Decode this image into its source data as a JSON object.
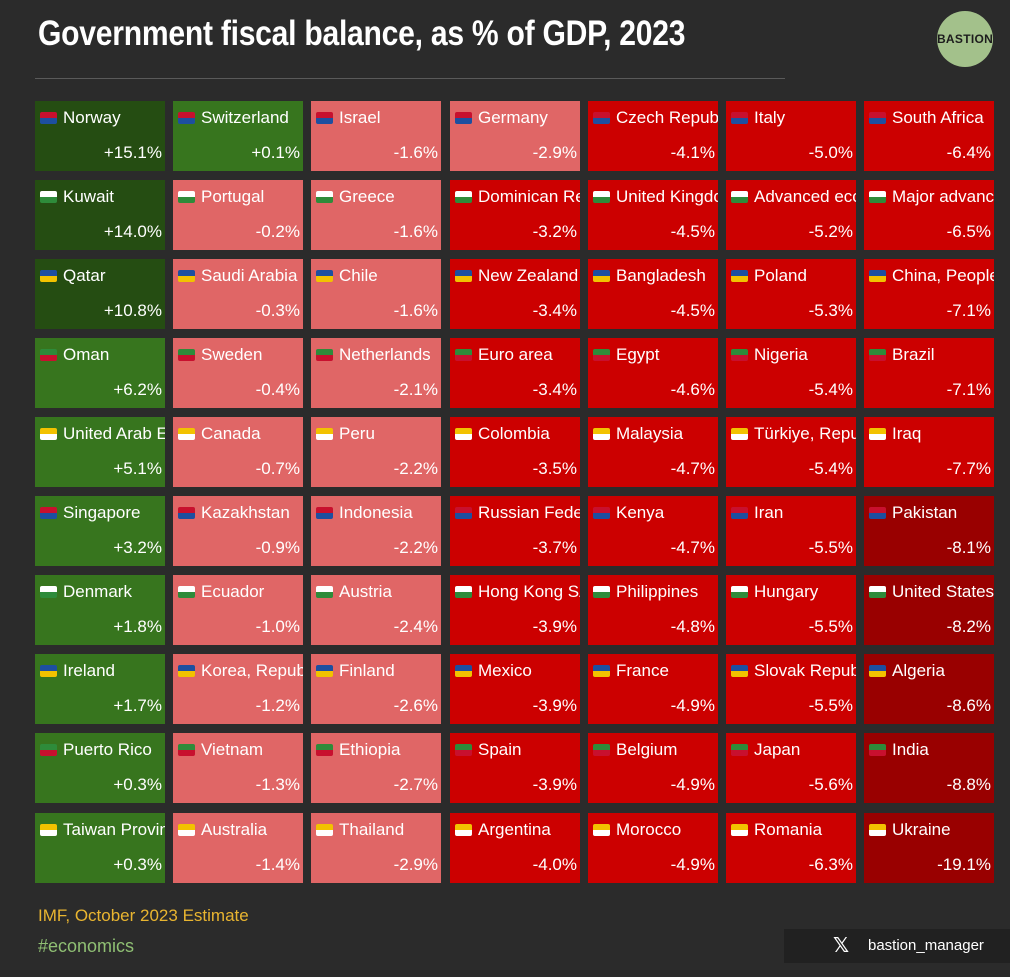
{
  "header": {
    "title": "Government fiscal balance, as % of GDP, 2023",
    "logo_text": "BASTION"
  },
  "footer": {
    "source": "IMF, October 2023 Estimate",
    "hashtag": "#economics",
    "x_icon": "x-logo-icon",
    "handle": "bastion_manager"
  },
  "colors": {
    "background": "#2b2b2b",
    "very_positive": "#254d12",
    "positive": "#37751e",
    "slightly_negative": "#e06666",
    "negative": "#cc0000",
    "very_negative": "#990000"
  },
  "chart_data": {
    "type": "heatmap",
    "title": "Government fiscal balance, as % of GDP, 2023",
    "unit": "% of GDP",
    "layout": "ranked grid, 10 rows per column, sorted descending",
    "columns": [
      [
        {
          "name": "Norway",
          "label": "+15.1%",
          "value": 15.1
        },
        {
          "name": "Kuwait",
          "label": "+14.0%",
          "value": 14.0
        },
        {
          "name": "Qatar",
          "label": "+10.8%",
          "value": 10.8
        },
        {
          "name": "Oman",
          "label": "+6.2%",
          "value": 6.2
        },
        {
          "name": "United Arab Emirates",
          "label": "+5.1%",
          "value": 5.1
        },
        {
          "name": "Singapore",
          "label": "+3.2%",
          "value": 3.2
        },
        {
          "name": "Denmark",
          "label": "+1.8%",
          "value": 1.8
        },
        {
          "name": "Ireland",
          "label": "+1.7%",
          "value": 1.7
        },
        {
          "name": "Puerto Rico",
          "label": "+0.3%",
          "value": 0.3
        },
        {
          "name": "Taiwan Province of China",
          "label": "+0.3%",
          "value": 0.3
        }
      ],
      [
        {
          "name": "Switzerland",
          "label": "+0.1%",
          "value": 0.1
        },
        {
          "name": "Portugal",
          "label": "-0.2%",
          "value": -0.2
        },
        {
          "name": "Saudi Arabia",
          "label": "-0.3%",
          "value": -0.3
        },
        {
          "name": "Sweden",
          "label": "-0.4%",
          "value": -0.4
        },
        {
          "name": "Canada",
          "label": "-0.7%",
          "value": -0.7
        },
        {
          "name": "Kazakhstan",
          "label": "-0.9%",
          "value": -0.9
        },
        {
          "name": "Ecuador",
          "label": "-1.0%",
          "value": -1.0
        },
        {
          "name": "Korea, Republic of",
          "label": "-1.2%",
          "value": -1.2
        },
        {
          "name": "Vietnam",
          "label": "-1.3%",
          "value": -1.3
        },
        {
          "name": "Australia",
          "label": "-1.4%",
          "value": -1.4
        }
      ],
      [
        {
          "name": "Israel",
          "label": "-1.6%",
          "value": -1.6
        },
        {
          "name": "Greece",
          "label": "-1.6%",
          "value": -1.6
        },
        {
          "name": "Chile",
          "label": "-1.6%",
          "value": -1.6
        },
        {
          "name": "Netherlands",
          "label": "-2.1%",
          "value": -2.1
        },
        {
          "name": "Peru",
          "label": "-2.2%",
          "value": -2.2
        },
        {
          "name": "Indonesia",
          "label": "-2.2%",
          "value": -2.2
        },
        {
          "name": "Austria",
          "label": "-2.4%",
          "value": -2.4
        },
        {
          "name": "Finland",
          "label": "-2.6%",
          "value": -2.6
        },
        {
          "name": "Ethiopia",
          "label": "-2.7%",
          "value": -2.7
        },
        {
          "name": "Thailand",
          "label": "-2.9%",
          "value": -2.9
        }
      ],
      [
        {
          "name": "Germany",
          "label": "-2.9%",
          "value": -2.9
        },
        {
          "name": "Dominican Republic",
          "label": "-3.2%",
          "value": -3.2
        },
        {
          "name": "New Zealand",
          "label": "-3.4%",
          "value": -3.4
        },
        {
          "name": "Euro area",
          "label": "-3.4%",
          "value": -3.4
        },
        {
          "name": "Colombia",
          "label": "-3.5%",
          "value": -3.5
        },
        {
          "name": "Russian Federation",
          "label": "-3.7%",
          "value": -3.7
        },
        {
          "name": "Hong Kong SAR",
          "label": "-3.9%",
          "value": -3.9
        },
        {
          "name": "Mexico",
          "label": "-3.9%",
          "value": -3.9
        },
        {
          "name": "Spain",
          "label": "-3.9%",
          "value": -3.9
        },
        {
          "name": "Argentina",
          "label": "-4.0%",
          "value": -4.0
        }
      ],
      [
        {
          "name": "Czech Republic",
          "label": "-4.1%",
          "value": -4.1
        },
        {
          "name": "United Kingdom",
          "label": "-4.5%",
          "value": -4.5
        },
        {
          "name": "Bangladesh",
          "label": "-4.5%",
          "value": -4.5
        },
        {
          "name": "Egypt",
          "label": "-4.6%",
          "value": -4.6
        },
        {
          "name": "Malaysia",
          "label": "-4.7%",
          "value": -4.7
        },
        {
          "name": "Kenya",
          "label": "-4.7%",
          "value": -4.7
        },
        {
          "name": "Philippines",
          "label": "-4.8%",
          "value": -4.8
        },
        {
          "name": "France",
          "label": "-4.9%",
          "value": -4.9
        },
        {
          "name": "Belgium",
          "label": "-4.9%",
          "value": -4.9
        },
        {
          "name": "Morocco",
          "label": "-4.9%",
          "value": -4.9
        }
      ],
      [
        {
          "name": "Italy",
          "label": "-5.0%",
          "value": -5.0
        },
        {
          "name": "Advanced economies",
          "label": "-5.2%",
          "value": -5.2
        },
        {
          "name": "Poland",
          "label": "-5.3%",
          "value": -5.3
        },
        {
          "name": "Nigeria",
          "label": "-5.4%",
          "value": -5.4
        },
        {
          "name": "Türkiye, Republic of",
          "label": "-5.4%",
          "value": -5.4
        },
        {
          "name": "Iran",
          "label": "-5.5%",
          "value": -5.5
        },
        {
          "name": "Hungary",
          "label": "-5.5%",
          "value": -5.5
        },
        {
          "name": "Slovak Republic",
          "label": "-5.5%",
          "value": -5.5
        },
        {
          "name": "Japan",
          "label": "-5.6%",
          "value": -5.6
        },
        {
          "name": "Romania",
          "label": "-6.3%",
          "value": -6.3
        }
      ],
      [
        {
          "name": "South Africa",
          "label": "-6.4%",
          "value": -6.4
        },
        {
          "name": "Major advanced economies",
          "label": "-6.5%",
          "value": -6.5
        },
        {
          "name": "China, People's Republic of",
          "label": "-7.1%",
          "value": -7.1
        },
        {
          "name": "Brazil",
          "label": "-7.1%",
          "value": -7.1
        },
        {
          "name": "Iraq",
          "label": "-7.7%",
          "value": -7.7
        },
        {
          "name": "Pakistan",
          "label": "-8.1%",
          "value": -8.1
        },
        {
          "name": "United States",
          "label": "-8.2%",
          "value": -8.2
        },
        {
          "name": "Algeria",
          "label": "-8.6%",
          "value": -8.6
        },
        {
          "name": "India",
          "label": "-8.8%",
          "value": -8.8
        },
        {
          "name": "Ukraine",
          "label": "-19.1%",
          "value": -19.1
        }
      ]
    ],
    "color_scale": [
      {
        "range": ">= 10",
        "color": "#254d12"
      },
      {
        "range": "0 to 10",
        "color": "#37751e"
      },
      {
        "range": "-2.9 to 0",
        "color": "#e06666"
      },
      {
        "range": "-8 to -2.9",
        "color": "#cc0000"
      },
      {
        "range": "< -8",
        "color": "#990000"
      }
    ]
  }
}
